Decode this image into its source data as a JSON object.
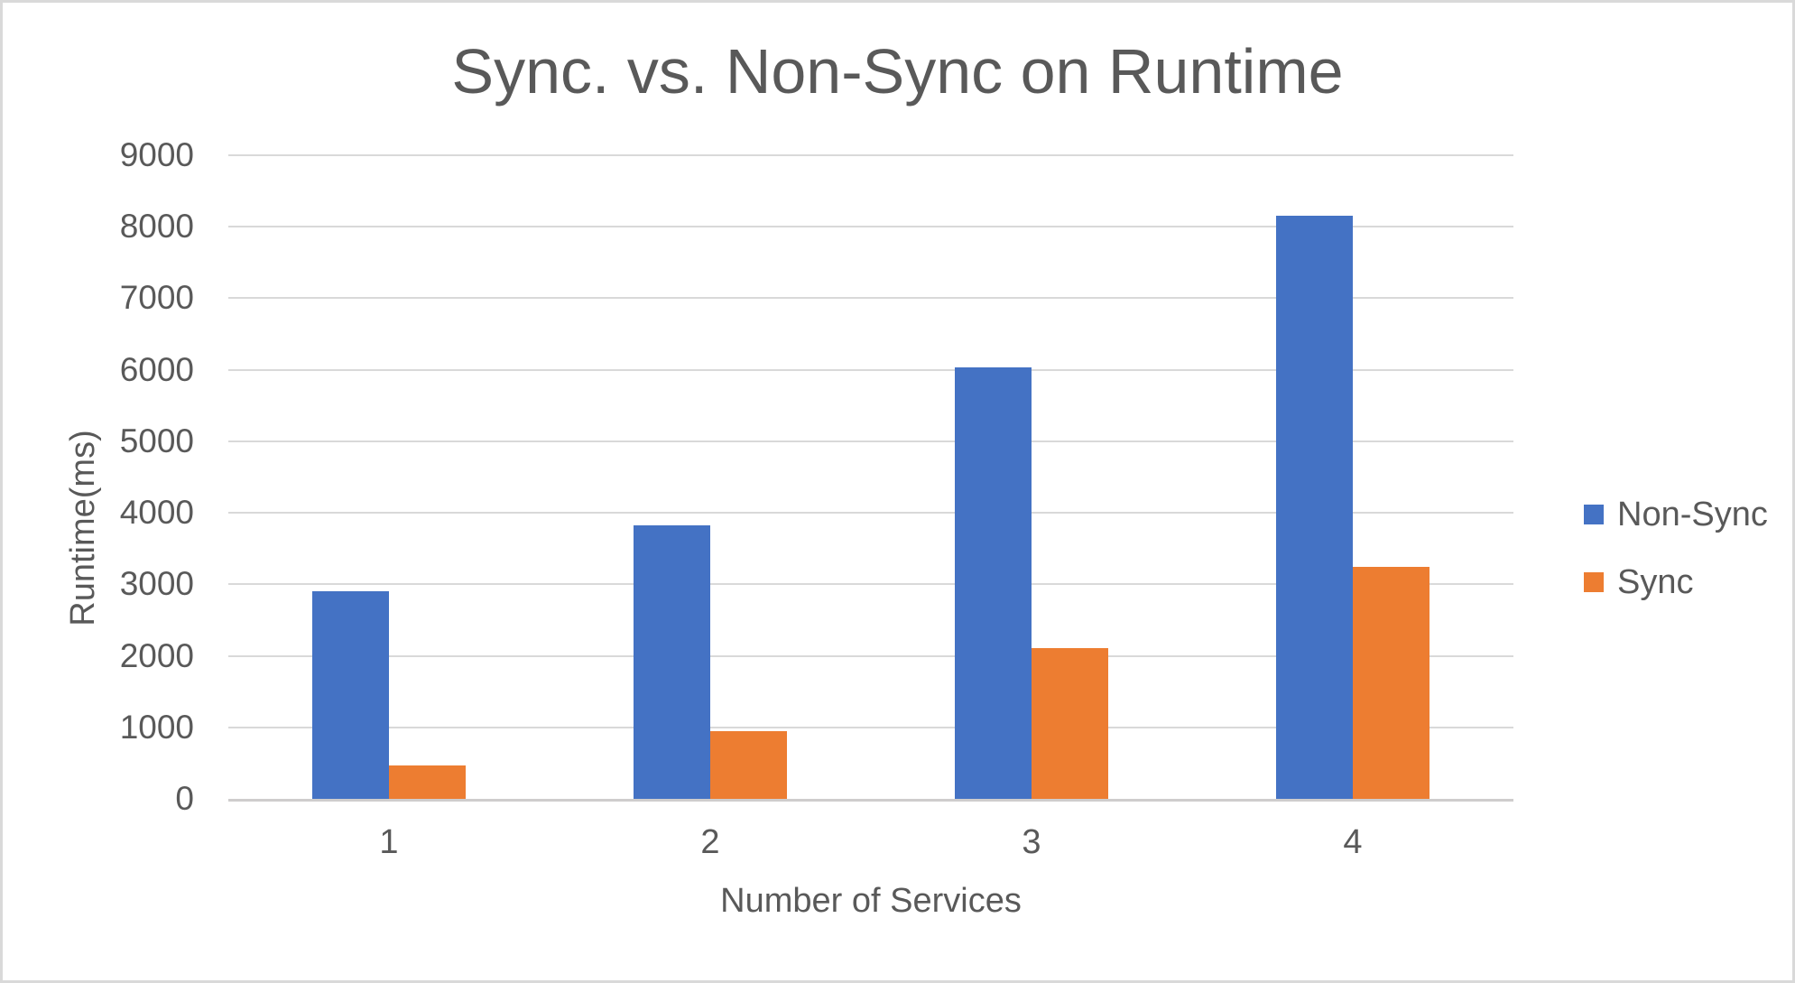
{
  "chart_data": {
    "type": "bar",
    "title": "Sync. vs. Non-Sync on Runtime",
    "xlabel": "Number of Services",
    "ylabel": "Runtime(ms)",
    "categories": [
      "1",
      "2",
      "3",
      "4"
    ],
    "series": [
      {
        "name": "Non-Sync",
        "color": "#4472C4",
        "values": [
          2900,
          3820,
          6030,
          8160
        ]
      },
      {
        "name": "Sync",
        "color": "#ED7D31",
        "values": [
          470,
          950,
          2110,
          3250
        ]
      }
    ],
    "ylim": [
      0,
      9000
    ],
    "ytick_step": 1000,
    "yticks": [
      "9000",
      "8000",
      "7000",
      "6000",
      "5000",
      "4000",
      "3000",
      "2000",
      "1000",
      "0"
    ],
    "grid": "horizontal",
    "legend_position": "right",
    "colors": {
      "text": "#595959",
      "gridline": "#D9D9D9",
      "axis_line": "#CFCDCD",
      "background": "#FFFFFF",
      "border": "#D9D9D9"
    }
  }
}
